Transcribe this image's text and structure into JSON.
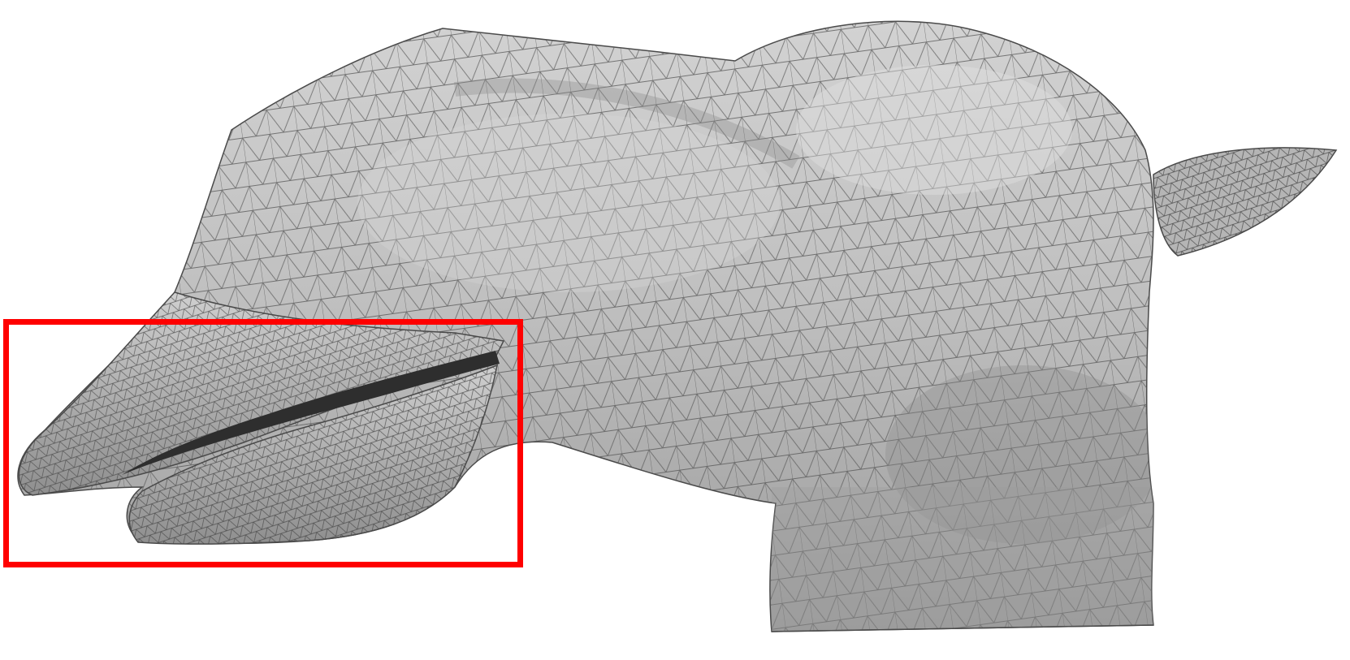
{
  "scene": {
    "background": "#ffffff",
    "mesh_fill": "#bdbdbd",
    "mesh_edge": "#4a4a4a",
    "highlight_color": "#ff0000"
  }
}
